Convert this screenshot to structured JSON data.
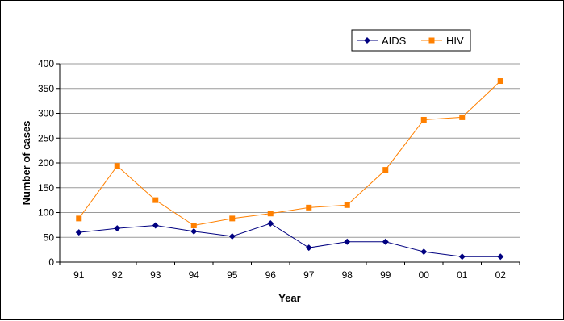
{
  "chart_data": {
    "type": "line",
    "title": "",
    "xlabel": "Year",
    "ylabel": "Number of cases",
    "categories": [
      "91",
      "92",
      "93",
      "94",
      "95",
      "96",
      "97",
      "98",
      "99",
      "00",
      "01",
      "02"
    ],
    "ylim": [
      0,
      400
    ],
    "yticks": [
      "0",
      "50",
      "100",
      "150",
      "200",
      "250",
      "300",
      "350",
      "400"
    ],
    "grid": "horizontal",
    "legend": "top-right",
    "series": [
      {
        "name": "AIDS",
        "color": "#000080",
        "marker": "diamond",
        "values": [
          60,
          68,
          74,
          62,
          52,
          78,
          29,
          41,
          41,
          21,
          11,
          11
        ]
      },
      {
        "name": "HIV",
        "color": "#ff8000",
        "marker": "square",
        "values": [
          88,
          194,
          125,
          74,
          88,
          98,
          110,
          115,
          186,
          287,
          292,
          365
        ]
      }
    ]
  }
}
